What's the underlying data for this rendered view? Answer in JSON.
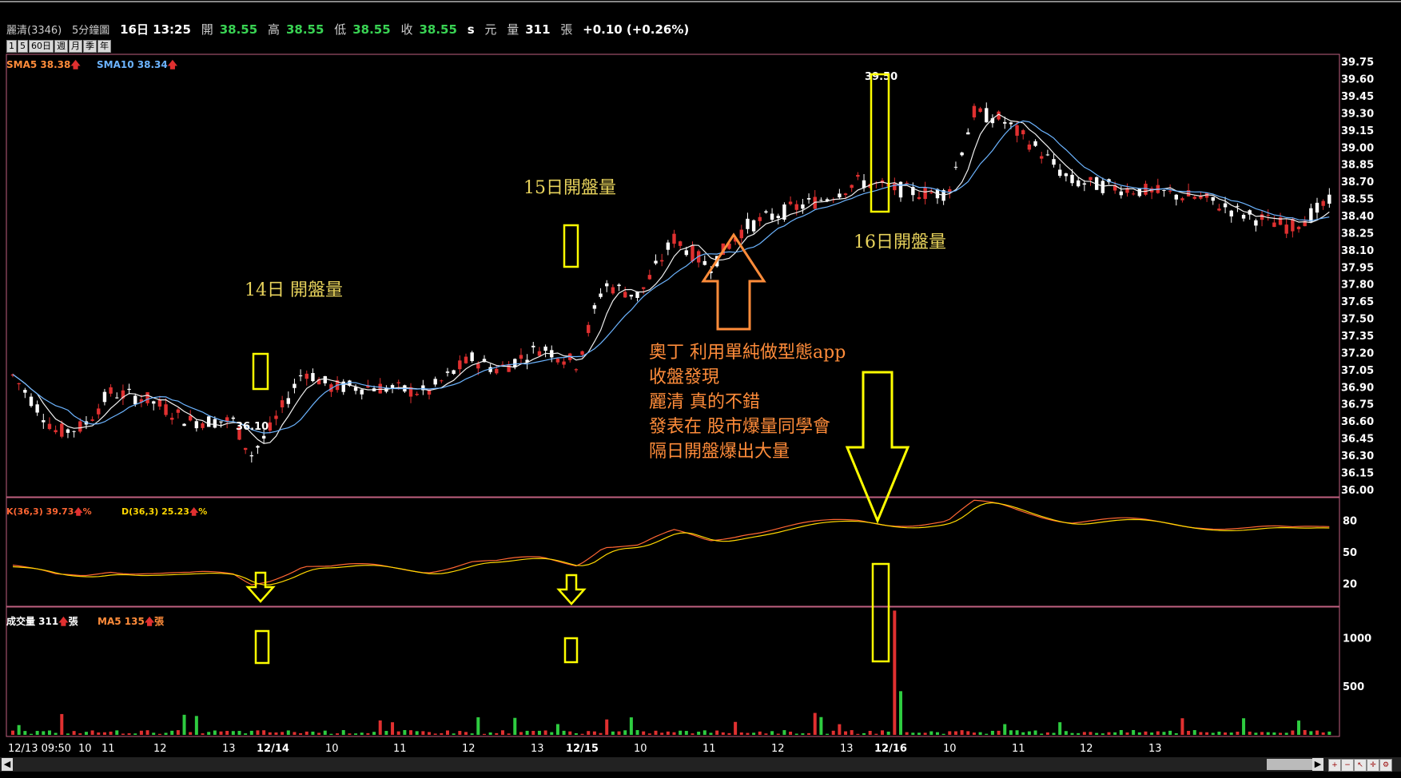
{
  "header": {
    "stock": "麗清(3346)",
    "timeframe": "5分鐘圖",
    "datetime": "16日 13:25",
    "open_label": "開",
    "open": "38.55",
    "high_label": "高",
    "high": "38.55",
    "low_label": "低",
    "low": "38.55",
    "close_label": "收",
    "close": "38.55",
    "suffix": "s",
    "currency": "元",
    "vol_label": "量",
    "volume": "311",
    "vol_unit": "張",
    "change": "+0.10 (+0.26%)"
  },
  "periods": [
    "1",
    "5",
    "60日",
    "週",
    "月",
    "季",
    "年"
  ],
  "indicators": {
    "sma5": "SMA5 38.38",
    "sma10": "SMA10 38.34",
    "k": "K(36,3) 39.73",
    "k_pct": "%",
    "d": "D(36,3) 25.23",
    "d_pct": "%",
    "vol": "成交量 311",
    "vol_unit": "張",
    "ma5": "MA5 135",
    "ma5_unit": "張"
  },
  "chart_data": {
    "type": "candlestick",
    "price_axis": {
      "ticks": [
        "39.75",
        "39.60",
        "39.45",
        "39.30",
        "39.15",
        "39.00",
        "38.85",
        "38.70",
        "38.55",
        "38.40",
        "38.25",
        "38.10",
        "37.95",
        "37.80",
        "37.65",
        "37.50",
        "37.35",
        "37.20",
        "37.05",
        "36.90",
        "36.75",
        "36.60",
        "36.45",
        "36.30",
        "36.15",
        "36.00"
      ],
      "range": [
        35.95,
        39.8
      ]
    },
    "kd_axis": {
      "ticks": [
        "80",
        "50",
        "20"
      ],
      "range": [
        0,
        100
      ]
    },
    "volume_axis": {
      "ticks": [
        "1000",
        "500"
      ],
      "range": [
        0,
        1300
      ]
    },
    "x_labels": [
      {
        "t": "12/13 09:50",
        "bold": false
      },
      {
        "t": "10",
        "bold": false
      },
      {
        "t": "11",
        "bold": false
      },
      {
        "t": "12",
        "bold": false
      },
      {
        "t": "13",
        "bold": false
      },
      {
        "t": "12/14",
        "bold": true
      },
      {
        "t": "10",
        "bold": false
      },
      {
        "t": "11",
        "bold": false
      },
      {
        "t": "12",
        "bold": false
      },
      {
        "t": "13",
        "bold": false
      },
      {
        "t": "12/15",
        "bold": true
      },
      {
        "t": "10",
        "bold": false
      },
      {
        "t": "11",
        "bold": false
      },
      {
        "t": "12",
        "bold": false
      },
      {
        "t": "13",
        "bold": false
      },
      {
        "t": "12/16",
        "bold": true
      },
      {
        "t": "10",
        "bold": false
      },
      {
        "t": "11",
        "bold": false
      },
      {
        "t": "12",
        "bold": false
      },
      {
        "t": "13",
        "bold": false
      }
    ],
    "price_labels": {
      "low": "36.10",
      "high": "39.50"
    },
    "key_volumes": [
      {
        "session": "12/14 open",
        "value": 130
      },
      {
        "session": "12/15 open",
        "value": 110
      },
      {
        "session": "12/16 open",
        "value": 1280
      }
    ]
  },
  "annotations": {
    "a14": "14日 開盤量",
    "a15": "15日開盤量",
    "a16": "16日開盤量",
    "note": [
      "奧丁 利用單純做型態app",
      "收盤發現",
      "麗清 真的不錯",
      "發表在 股市爆量同學會",
      "隔日開盤爆出大量"
    ]
  },
  "colors": {
    "up": "#e03030",
    "down": "#ffffff",
    "vol_up": "#e03030",
    "vol_down": "#2ecc40",
    "sma5": "#f0f0f0",
    "sma10": "#6cb4ff",
    "k": "#ff6633",
    "d": "#ffd700",
    "box": "#ffff00",
    "note": "#ff8c3a",
    "frame": "#c06080"
  }
}
